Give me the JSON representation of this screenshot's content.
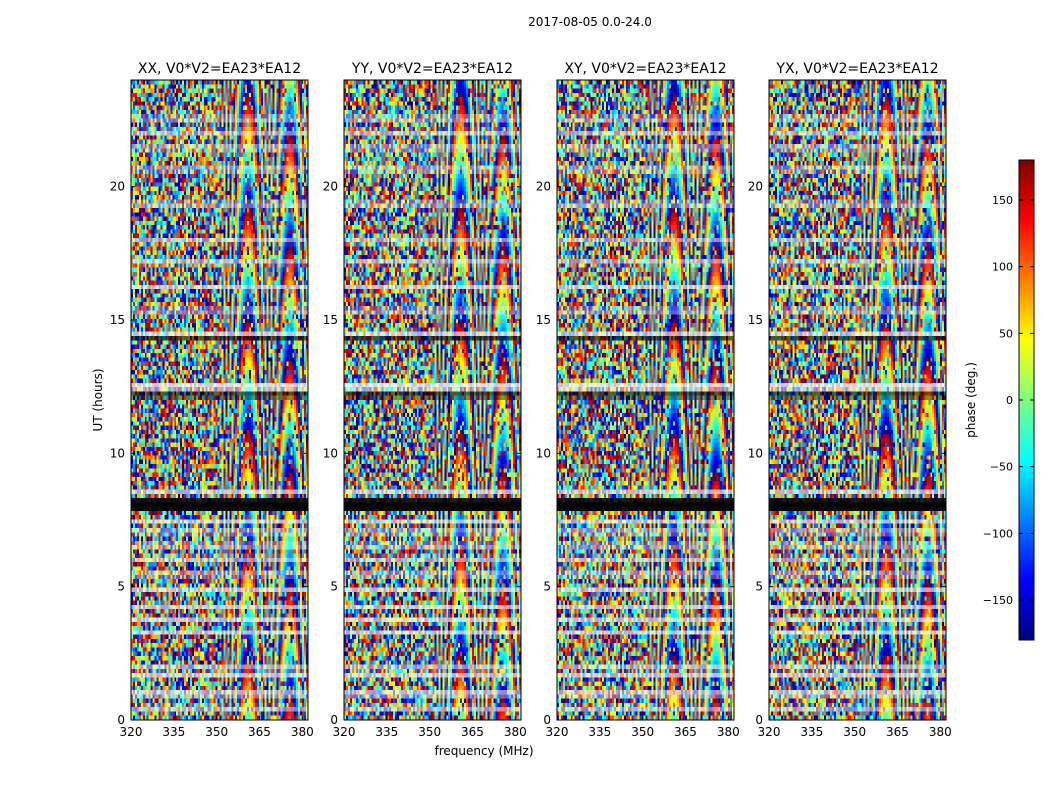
{
  "figure": {
    "suptitle": "2017-08-05 0.0-24.0"
  },
  "chart_data": {
    "type": "heatmap",
    "xlabel": "frequency (MHz)",
    "ylabel": "UT (hours)",
    "xlim": [
      320,
      382
    ],
    "ylim": [
      0,
      24
    ],
    "xticks": [
      320,
      335,
      350,
      365,
      380
    ],
    "yticks": [
      0,
      5,
      10,
      15,
      20
    ],
    "panels": [
      {
        "title": "XX, V0*V2=EA23*EA12",
        "seed": 11
      },
      {
        "title": "YY, V0*V2=EA23*EA12",
        "seed": 29
      },
      {
        "title": "XY, V0*V2=EA23*EA12",
        "seed": 47
      },
      {
        "title": "YX, V0*V2=EA23*EA12",
        "seed": 83
      }
    ],
    "colorbar": {
      "label": "phase (deg.)",
      "range": [
        -180,
        180
      ],
      "ticks": [
        150,
        100,
        50,
        0,
        -50,
        -100,
        -150
      ],
      "ticklabels": [
        "150",
        "100",
        "50",
        "0",
        "−50",
        "−100",
        "−150"
      ],
      "colormap": [
        "#00007f",
        "#0000ff",
        "#007fff",
        "#00ffff",
        "#7fff7f",
        "#ffff00",
        "#ff7f00",
        "#ff0000",
        "#7f0000"
      ]
    },
    "flagged_bands_hours": [
      [
        0.4,
        0.5
      ],
      [
        0.9,
        1.05
      ],
      [
        1.6,
        1.7
      ],
      [
        1.9,
        2.0
      ],
      [
        3.2,
        3.3
      ],
      [
        3.7,
        3.8
      ],
      [
        4.2,
        4.3
      ],
      [
        4.8,
        4.9
      ],
      [
        5.4,
        5.5
      ],
      [
        6.0,
        6.1
      ],
      [
        6.5,
        6.6
      ],
      [
        7.0,
        7.1
      ],
      [
        7.4,
        7.5
      ],
      [
        8.5,
        8.6
      ],
      [
        12.4,
        12.6
      ],
      [
        14.4,
        14.5
      ],
      [
        15.3,
        15.4
      ],
      [
        16.2,
        16.3
      ],
      [
        17.1,
        17.2
      ],
      [
        17.9,
        18.0
      ],
      [
        19.3,
        19.4
      ],
      [
        20.6,
        20.7
      ],
      [
        21.4,
        21.5
      ],
      [
        22.0,
        22.1
      ],
      [
        22.5,
        22.6
      ]
    ],
    "black_bands_hours": [
      [
        7.85,
        8.3
      ],
      [
        12.1,
        12.25
      ],
      [
        14.3,
        14.35
      ]
    ]
  }
}
